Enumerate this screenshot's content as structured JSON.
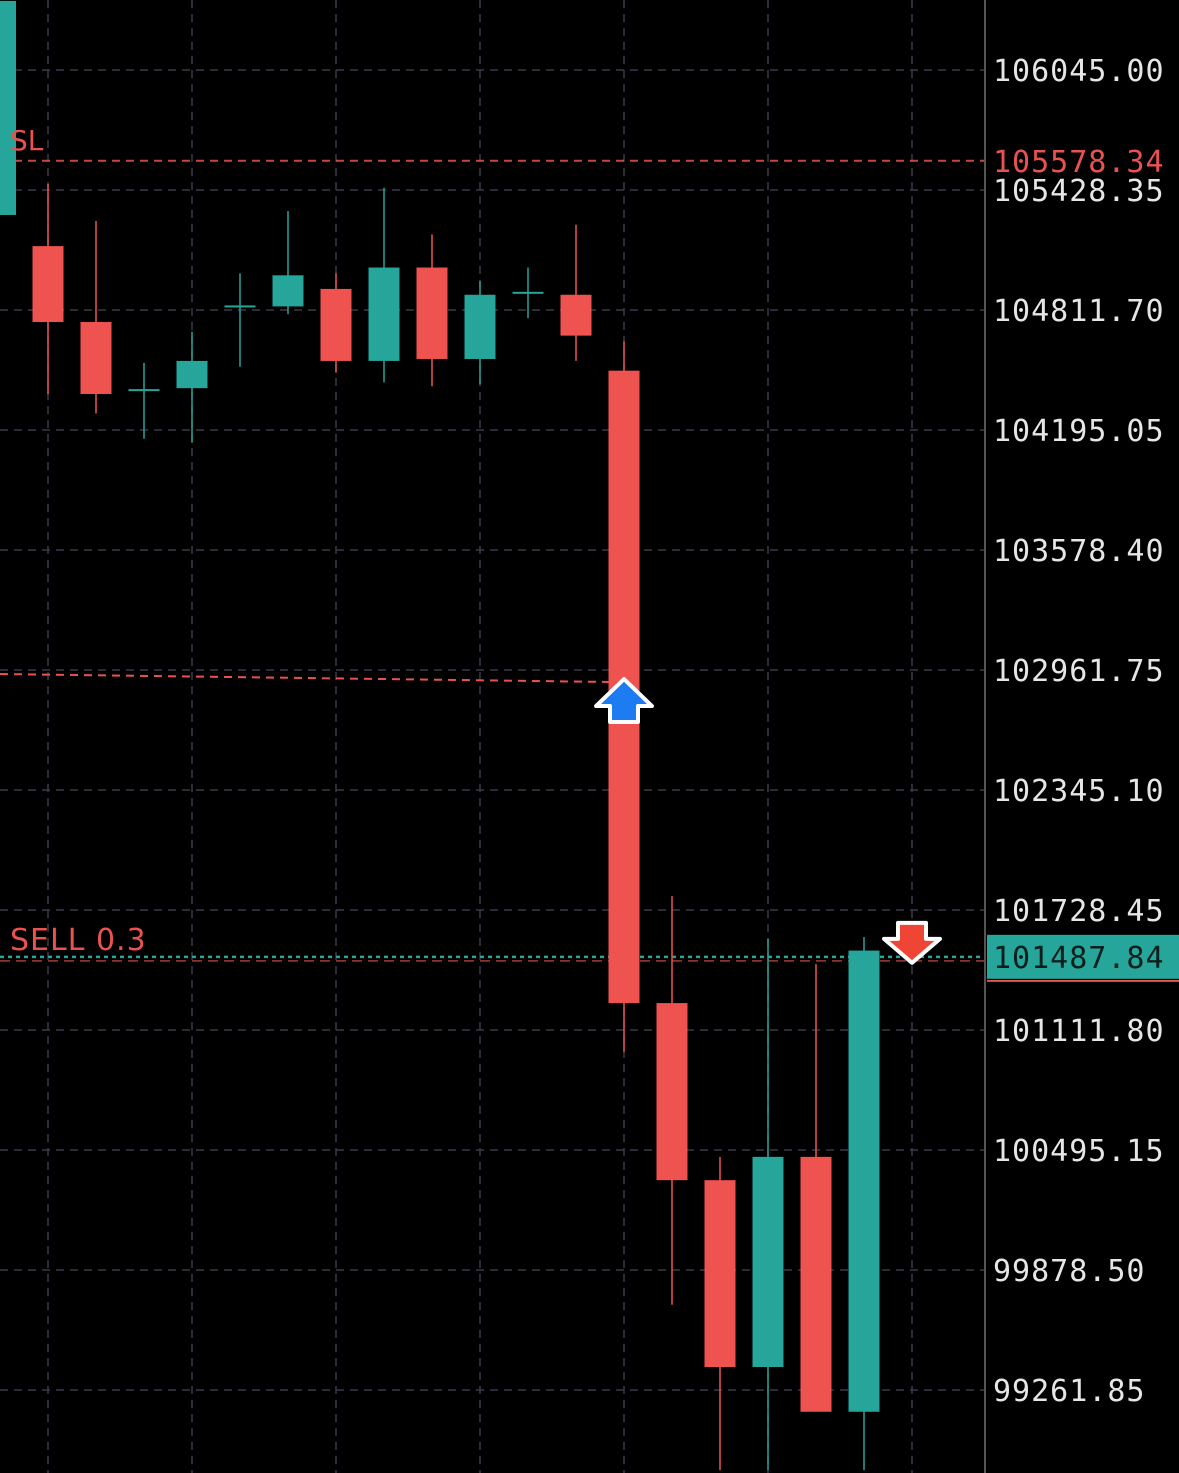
{
  "chart_data": {
    "type": "candlestick",
    "y_ticks": [
      "106045.00",
      "105428.35",
      "104811.70",
      "104195.05",
      "103578.40",
      "102961.75",
      "102345.10",
      "101728.45",
      "101111.80",
      "100495.15",
      "99878.50",
      "99261.85"
    ],
    "ylim": [
      98850,
      106400
    ],
    "grid": true,
    "candles": [
      {
        "open": 105300,
        "high": 106400,
        "low": 105300,
        "close": 106400
      },
      {
        "open": 105140,
        "high": 105460,
        "low": 104380,
        "close": 104750
      },
      {
        "open": 104750,
        "high": 105270,
        "low": 104280,
        "close": 104380
      },
      {
        "open": 104400,
        "high": 104540,
        "low": 104150,
        "close": 104400
      },
      {
        "open": 104410,
        "high": 104700,
        "low": 104130,
        "close": 104550
      },
      {
        "open": 104830,
        "high": 105000,
        "low": 104520,
        "close": 104830
      },
      {
        "open": 104830,
        "high": 105320,
        "low": 104790,
        "close": 104990
      },
      {
        "open": 104920,
        "high": 105000,
        "low": 104490,
        "close": 104550
      },
      {
        "open": 104550,
        "high": 105440,
        "low": 104440,
        "close": 105030
      },
      {
        "open": 105030,
        "high": 105200,
        "low": 104420,
        "close": 104560
      },
      {
        "open": 104560,
        "high": 104960,
        "low": 104430,
        "close": 104890
      },
      {
        "open": 104900,
        "high": 105030,
        "low": 104770,
        "close": 104900
      },
      {
        "open": 104890,
        "high": 105250,
        "low": 104550,
        "close": 104680
      },
      {
        "open": 104500,
        "high": 104650,
        "low": 101000,
        "close": 101250
      },
      {
        "open": 101250,
        "high": 101800,
        "low": 99700,
        "close": 100340
      },
      {
        "open": 100340,
        "high": 100460,
        "low": 98850,
        "close": 99380
      },
      {
        "open": 99380,
        "high": 101580,
        "low": 98850,
        "close": 100460
      },
      {
        "open": 100460,
        "high": 101450,
        "low": 99190,
        "close": 99150
      },
      {
        "open": 99150,
        "high": 101590,
        "low": 98850,
        "close": 101520
      }
    ],
    "sl": {
      "label": "SL",
      "price": "105578.34"
    },
    "current": {
      "label": "SELL 0.3",
      "price": "101487.84"
    },
    "entry_price": 102900
  },
  "colors": {
    "up": "#26a69a",
    "down": "#ef5350",
    "grid": "#3a3a4a",
    "axis_text": "#e6e6e6",
    "sl_line": "#e8524f",
    "current_line": "#26a69a",
    "buy_marker": "#1e7cf2",
    "sell_marker": "#ef4534"
  }
}
